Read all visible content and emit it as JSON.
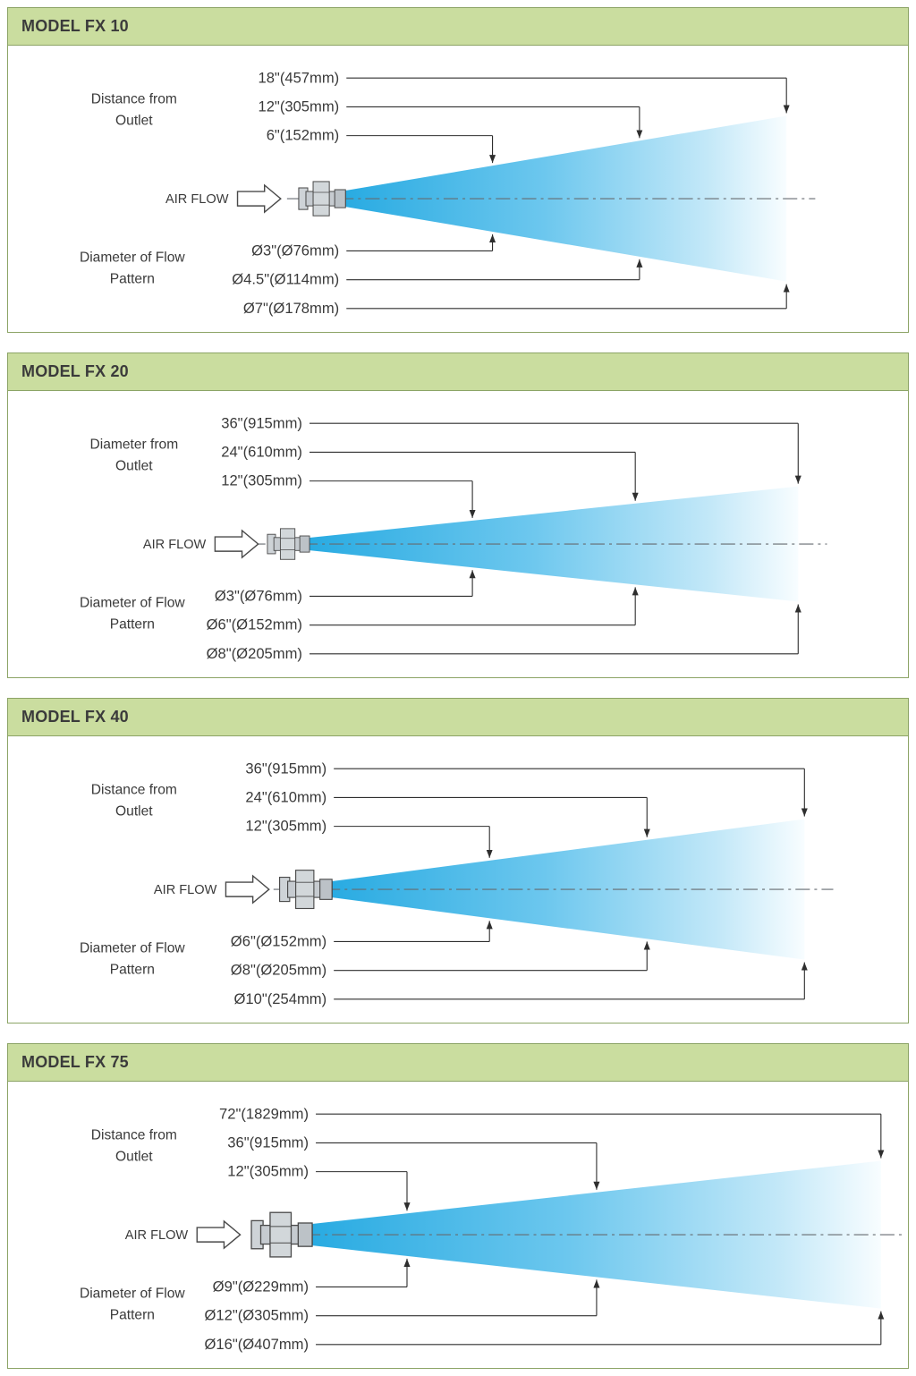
{
  "colors": {
    "header_bg": "#cadd9f",
    "panel_border": "#8ca466",
    "cone_start": "#29abe2",
    "cone_mid": "#6cc7ee",
    "cone_light": "#c3e8f8",
    "cone_fade": "#f8fdff",
    "line": "#2e2e2e",
    "centerline": "#666b70",
    "text": "#3a3a3a"
  },
  "panels": [
    {
      "title": "MODEL FX 10",
      "outlet_label": [
        "Distance from",
        "Outlet"
      ],
      "pattern_label": [
        "Diameter of Flow",
        "Pattern"
      ],
      "airflow_label": "AIR FLOW",
      "distances": [
        {
          "label": "18\"(457mm)",
          "inches": 18
        },
        {
          "label": "12\"(305mm)",
          "inches": 12
        },
        {
          "label": "6\"(152mm)",
          "inches": 6
        }
      ],
      "diameters": [
        {
          "label": "Ø3\"(Ø76mm)",
          "inches": 3
        },
        {
          "label": "Ø4.5\"(Ø114mm)",
          "inches": 4.5
        },
        {
          "label": "Ø7\"(Ø178mm)",
          "inches": 7
        }
      ]
    },
    {
      "title": "MODEL FX 20",
      "outlet_label": [
        "Diameter from",
        "Outlet"
      ],
      "pattern_label": [
        "Diameter of Flow",
        "Pattern"
      ],
      "airflow_label": "AIR FLOW",
      "distances": [
        {
          "label": "36\"(915mm)",
          "inches": 36
        },
        {
          "label": "24\"(610mm)",
          "inches": 24
        },
        {
          "label": "12\"(305mm)",
          "inches": 12
        }
      ],
      "diameters": [
        {
          "label": "Ø3\"(Ø76mm)",
          "inches": 3
        },
        {
          "label": "Ø6\"(Ø152mm)",
          "inches": 6
        },
        {
          "label": "Ø8\"(Ø205mm)",
          "inches": 8
        }
      ]
    },
    {
      "title": "MODEL FX 40",
      "outlet_label": [
        "Distance from",
        "Outlet"
      ],
      "pattern_label": [
        "Diameter of Flow",
        "Pattern"
      ],
      "airflow_label": "AIR FLOW",
      "distances": [
        {
          "label": "36\"(915mm)",
          "inches": 36
        },
        {
          "label": "24\"(610mm)",
          "inches": 24
        },
        {
          "label": "12\"(305mm)",
          "inches": 12
        }
      ],
      "diameters": [
        {
          "label": "Ø6\"(Ø152mm)",
          "inches": 6
        },
        {
          "label": "Ø8\"(Ø205mm)",
          "inches": 8
        },
        {
          "label": "Ø10\"(254mm)",
          "inches": 10
        }
      ]
    },
    {
      "title": "MODEL FX 75",
      "outlet_label": [
        "Distance from",
        "Outlet"
      ],
      "pattern_label": [
        "Diameter of Flow",
        "Pattern"
      ],
      "airflow_label": "AIR FLOW",
      "distances": [
        {
          "label": "72\"(1829mm)",
          "inches": 72
        },
        {
          "label": "36\"(915mm)",
          "inches": 36
        },
        {
          "label": "12\"(305mm)",
          "inches": 12
        }
      ],
      "diameters": [
        {
          "label": "Ø9\"(Ø229mm)",
          "inches": 9
        },
        {
          "label": "Ø12\"(Ø305mm)",
          "inches": 12
        },
        {
          "label": "Ø16\"(Ø407mm)",
          "inches": 16
        }
      ]
    }
  ]
}
